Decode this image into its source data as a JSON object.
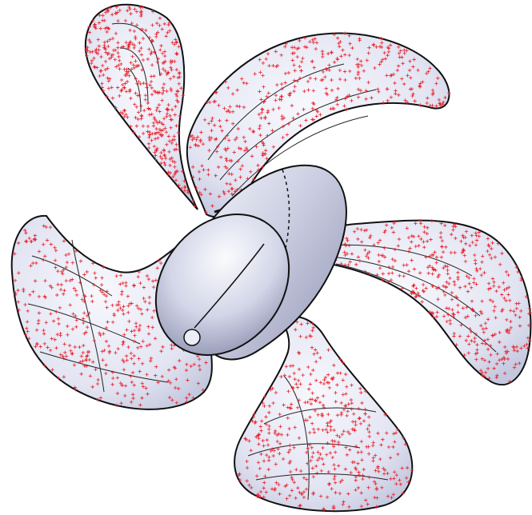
{
  "model": {
    "type": "propeller",
    "blade_count": 5,
    "colors": {
      "background": "#ffffff",
      "surface_light": "#f4f5fb",
      "surface_mid": "#dfe1f0",
      "surface_shadow": "#b9bdd6",
      "hub_light": "#f2f3fa",
      "hub_dark": "#9599b6",
      "edge_line": "#111111",
      "point_marker": "#e8202a"
    },
    "point_marker": "plus-cross"
  }
}
